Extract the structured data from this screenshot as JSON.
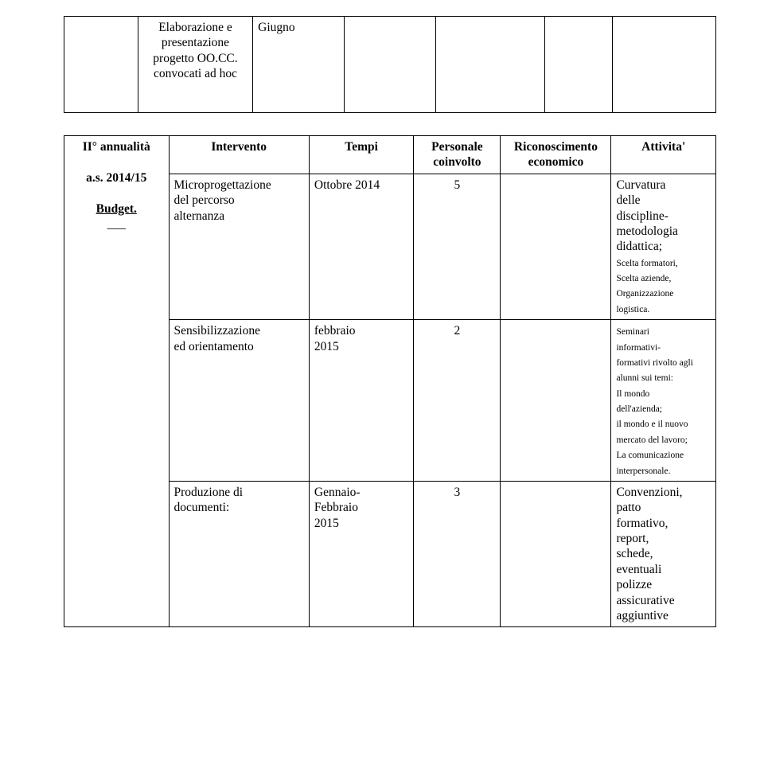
{
  "table1": {
    "row": {
      "col1_line1": "Elaborazione e",
      "col1_line2": "presentazione",
      "col1_line3": "progetto OO.CC.",
      "col1_line4": "convocati ad hoc",
      "col2": "Giugno"
    }
  },
  "table2": {
    "headers": {
      "col0": "II° annualità",
      "col0_sub1": "a.s. 2014/15",
      "col0_sub2": "Budget.",
      "col0_sub3": "___",
      "col1": "Intervento",
      "col2": "Tempi",
      "col3_line1": "Personale",
      "col3_line2": "coinvolto",
      "col4_line1": "Riconoscimento",
      "col4_line2": "economico",
      "col5": "Attivita'"
    },
    "rows": [
      {
        "intervento_l1": "Microprogettazione",
        "intervento_l2": "del percorso",
        "intervento_l3": "alternanza",
        "tempi": "Ottobre 2014",
        "personale": "5",
        "riconoscimento": "",
        "att_large_l1": "Curvatura",
        "att_large_l2": "delle",
        "att_large_l3": "discipline-",
        "att_large_l4": "metodologia",
        "att_large_l5": "didattica;",
        "att_small_l1": "Scelta formatori,",
        "att_small_l2": "Scelta aziende,",
        "att_small_l3": "Organizzazione",
        "att_small_l4": "logistica."
      },
      {
        "intervento_l1": "Sensibilizzazione",
        "intervento_l2": "ed orientamento",
        "tempi_l1": "febbraio",
        "tempi_l2": "2015",
        "personale": "2",
        "riconoscimento": "",
        "att_small_l1": "Seminari",
        "att_small_l2": "informativi-",
        "att_small_l3": "formativi rivolto agli",
        "att_small_l4": "alunni sui temi:",
        "att_small_l5": "Il mondo",
        "att_small_l6": "dell'azienda;",
        "att_small_l7": "il mondo e il nuovo",
        "att_small_l8": "mercato del lavoro;",
        "att_small_l9": "La comunicazione",
        "att_small_l10": "interpersonale."
      },
      {
        "intervento_l1": "Produzione di",
        "intervento_l2": "documenti:",
        "tempi_l1": "Gennaio-",
        "tempi_l2": "Febbraio",
        "tempi_l3": "2015",
        "personale": "3",
        "riconoscimento": "",
        "att_l1": "Convenzioni,",
        "att_l2": "patto",
        "att_l3": "formativo,",
        "att_l4": "report,",
        "att_l5": "schede,",
        "att_l6": "eventuali",
        "att_l7": "polizze",
        "att_l8": "assicurative",
        "att_l9": "aggiuntive"
      }
    ]
  }
}
